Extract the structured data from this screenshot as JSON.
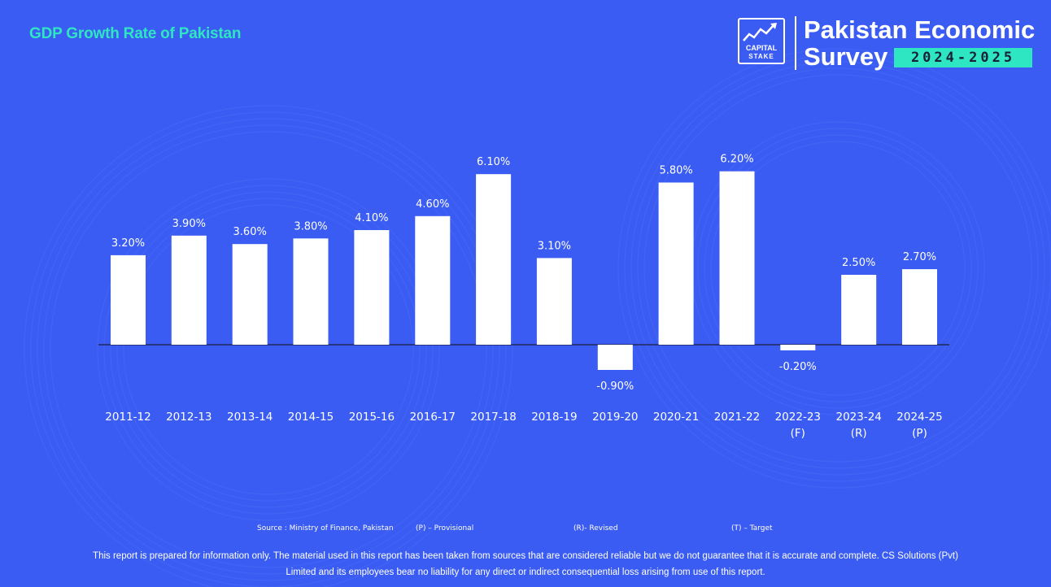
{
  "title": "GDP Growth Rate of Pakistan",
  "brand": {
    "logo_line1": "CAPITAL",
    "logo_line2": "STAKE",
    "line1": "Pakistan Economic",
    "line2": "Survey",
    "year": "2024-2025"
  },
  "colors": {
    "background": "#3a5cf2",
    "bar": "#ffffff",
    "title": "#2ee6c2",
    "badge": "#2ee6c2"
  },
  "chart_data": {
    "type": "bar",
    "categories": [
      [
        "2011-12"
      ],
      [
        "2012-13"
      ],
      [
        "2013-14"
      ],
      [
        "2014-15"
      ],
      [
        "2015-16"
      ],
      [
        "2016-17"
      ],
      [
        "2017-18"
      ],
      [
        "2018-19"
      ],
      [
        "2019-20"
      ],
      [
        "2020-21"
      ],
      [
        "2021-22"
      ],
      [
        "2022-23",
        "(F)"
      ],
      [
        "2023-24",
        "(R)"
      ],
      [
        "2024-25",
        "(P)"
      ]
    ],
    "values": [
      3.2,
      3.9,
      3.6,
      3.8,
      4.1,
      4.6,
      6.1,
      3.1,
      -0.9,
      5.8,
      6.2,
      -0.2,
      2.5,
      2.7
    ],
    "value_labels": [
      "3.20%",
      "3.90%",
      "3.60%",
      "3.80%",
      "4.10%",
      "4.60%",
      "6.10%",
      "3.10%",
      "-0.90%",
      "5.80%",
      "6.20%",
      "-0.20%",
      "2.50%",
      "2.70%"
    ],
    "title": "GDP Growth Rate of Pakistan",
    "xlabel": "",
    "ylabel": "",
    "ylim": [
      -0.9,
      6.2
    ],
    "grid": false,
    "legend": "none"
  },
  "footer": {
    "source": "Source : Ministry of Finance, Pakistan",
    "provisional": "(P) – Provisional",
    "revised": "(R)- Revised",
    "target": "(T) – Target",
    "disclaimer_line1": "This report is prepared for information only. The material used in this report has been taken from sources that are considered reliable but we do not guarantee that it is accurate and complete. CS Solutions (Pvt)",
    "disclaimer_line2": "Limited and its employees bear no liability for any direct or indirect consequential loss arising from use of this report."
  }
}
